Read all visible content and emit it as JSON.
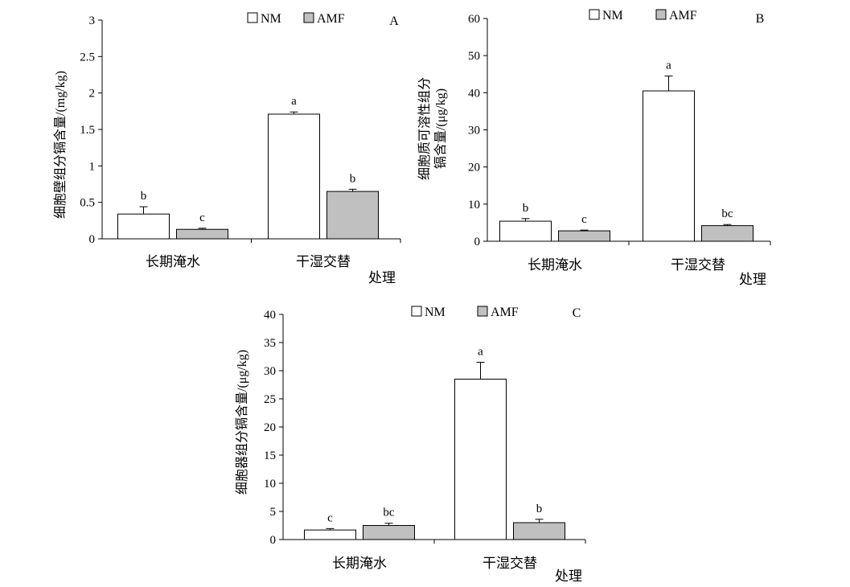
{
  "colors": {
    "NM": "#ffffff",
    "AMF": "#c0c0c0",
    "axis": "#000000"
  },
  "chart_data": [
    {
      "type": "bar",
      "panel_label": "A",
      "categories": [
        "长期淹水",
        "干湿交替"
      ],
      "xlabel": "处理",
      "ylabel": "细胞壁组分镉含量/(mg/kg)",
      "ylim": [
        0,
        3
      ],
      "yticks": [
        0,
        0.5,
        1,
        1.5,
        2,
        2.5,
        3
      ],
      "ytick_labels": [
        "0",
        "0.5",
        "1",
        "1.5",
        "2",
        "2.5",
        "3"
      ],
      "legend": {
        "position": "top",
        "entries": [
          "NM",
          "AMF"
        ]
      },
      "grid": false,
      "series": [
        {
          "name": "NM",
          "values": [
            0.34,
            1.71
          ],
          "errors": [
            0.1,
            0.03
          ],
          "letters": [
            "b",
            "a"
          ]
        },
        {
          "name": "AMF",
          "values": [
            0.13,
            0.65
          ],
          "errors": [
            0.015,
            0.03
          ],
          "letters": [
            "c",
            "b"
          ]
        }
      ]
    },
    {
      "type": "bar",
      "panel_label": "B",
      "categories": [
        "长期淹水",
        "干湿交替"
      ],
      "xlabel": "处理",
      "ylabel_lines": [
        "细胞质可溶性组分",
        "镉含量/(μg/kg)"
      ],
      "ylim": [
        0,
        60
      ],
      "yticks": [
        0,
        10,
        20,
        30,
        40,
        50,
        60
      ],
      "ytick_labels": [
        "0",
        "10",
        "20",
        "30",
        "40",
        "50",
        "60"
      ],
      "legend": {
        "position": "top",
        "entries": [
          "NM",
          "AMF"
        ]
      },
      "grid": false,
      "series": [
        {
          "name": "NM",
          "values": [
            5.4,
            40.5
          ],
          "errors": [
            0.7,
            4.0
          ],
          "letters": [
            "b",
            "a"
          ]
        },
        {
          "name": "AMF",
          "values": [
            2.8,
            4.2
          ],
          "errors": [
            0.2,
            0.3
          ],
          "letters": [
            "c",
            "bc"
          ]
        }
      ]
    },
    {
      "type": "bar",
      "panel_label": "C",
      "categories": [
        "长期淹水",
        "干湿交替"
      ],
      "xlabel": "处理",
      "ylabel": "细胞器组分镉含量/(μg/kg)",
      "ylim": [
        0,
        40
      ],
      "yticks": [
        0,
        5,
        10,
        15,
        20,
        25,
        30,
        35,
        40
      ],
      "ytick_labels": [
        "0",
        "5",
        "10",
        "15",
        "20",
        "25",
        "30",
        "35",
        "40"
      ],
      "legend": {
        "position": "top",
        "entries": [
          "NM",
          "AMF"
        ]
      },
      "grid": false,
      "series": [
        {
          "name": "NM",
          "values": [
            1.7,
            28.5
          ],
          "errors": [
            0.25,
            3.0
          ],
          "letters": [
            "c",
            "a"
          ]
        },
        {
          "name": "AMF",
          "values": [
            2.5,
            3.0
          ],
          "errors": [
            0.4,
            0.6
          ],
          "letters": [
            "bc",
            "b"
          ]
        }
      ]
    }
  ]
}
